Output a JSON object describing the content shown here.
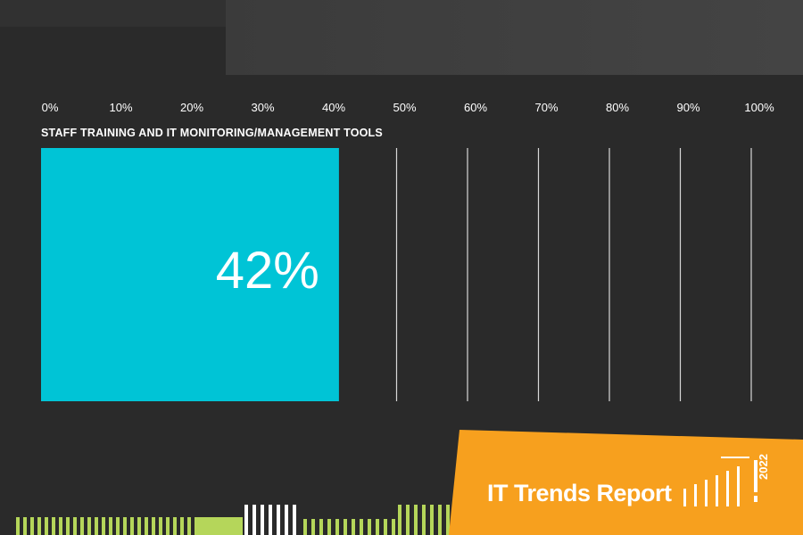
{
  "chart_data": {
    "type": "bar",
    "orientation": "horizontal",
    "title": "STAFF TRAINING AND IT MONITORING/MANAGEMENT TOOLS",
    "categories": [
      "STAFF TRAINING AND IT MONITORING/MANAGEMENT TOOLS"
    ],
    "values": [
      42
    ],
    "value_labels": [
      "42%"
    ],
    "xlim": [
      0,
      100
    ],
    "x_ticks": [
      "0%",
      "10%",
      "20%",
      "30%",
      "40%",
      "50%",
      "60%",
      "70%",
      "80%",
      "90%",
      "100%"
    ],
    "grid": true,
    "bar_color": "#00c4d6"
  },
  "branding": {
    "report_title": "IT Trends Report",
    "year": "2022",
    "accent_color": "#f7a01e",
    "secondary_color": "#b5d65a"
  }
}
